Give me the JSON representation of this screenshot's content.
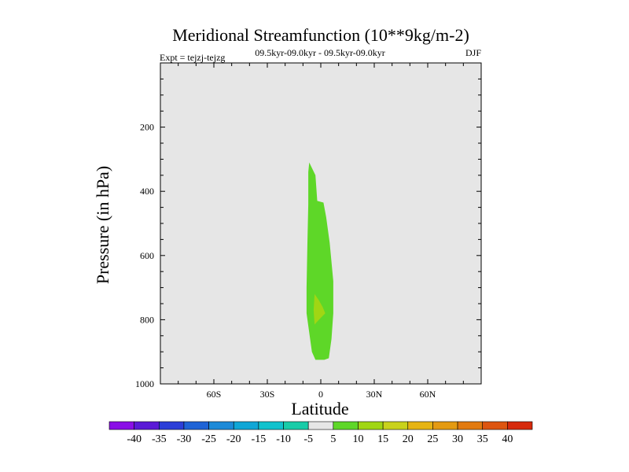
{
  "chart_data": {
    "type": "contour",
    "title": "Meridional Streamfunction (10**9kg/m-2)",
    "subtitle_left": "Expt = tejzj-tejzg",
    "subtitle_center": "09.5kyr-09.0kyr - 09.5kyr-09.0kyr",
    "subtitle_right": "DJF",
    "xlabel": "Latitude",
    "ylabel": "Pressure (in hPa)",
    "xlim": [
      -90,
      90
    ],
    "ylim": [
      1000,
      0
    ],
    "x_ticks": [
      {
        "value": -60,
        "label": "60S"
      },
      {
        "value": -30,
        "label": "30S"
      },
      {
        "value": 0,
        "label": "0"
      },
      {
        "value": 30,
        "label": "30N"
      },
      {
        "value": 60,
        "label": "60N"
      }
    ],
    "y_ticks": [
      {
        "value": 200,
        "label": "200"
      },
      {
        "value": 400,
        "label": "400"
      },
      {
        "value": 600,
        "label": "600"
      },
      {
        "value": 800,
        "label": "800"
      },
      {
        "value": 1000,
        "label": "1000"
      }
    ],
    "background_level": "-5 to 5",
    "regions": [
      {
        "level": "5 to 10",
        "color": "#5ed728",
        "outline": [
          [
            -6.5,
            310
          ],
          [
            -3,
            350
          ],
          [
            -2,
            430
          ],
          [
            1.5,
            435
          ],
          [
            3,
            480
          ],
          [
            5,
            560
          ],
          [
            7,
            680
          ],
          [
            7,
            780
          ],
          [
            6,
            860
          ],
          [
            4.5,
            920
          ],
          [
            2,
            925
          ],
          [
            -3,
            925
          ],
          [
            -5,
            900
          ],
          [
            -6.5,
            840
          ],
          [
            -8,
            780
          ],
          [
            -8,
            700
          ],
          [
            -7.5,
            560
          ],
          [
            -7,
            440
          ],
          [
            -7,
            340
          ]
        ]
      },
      {
        "level": "10 to 15",
        "color": "#a0d614",
        "outline": [
          [
            -3.5,
            720
          ],
          [
            -1,
            740
          ],
          [
            1,
            760
          ],
          [
            2.5,
            780
          ],
          [
            -1,
            800
          ],
          [
            -3.5,
            815
          ],
          [
            -4,
            770
          ]
        ]
      }
    ],
    "colorbar": {
      "labels": [
        "-40",
        "-35",
        "-30",
        "-25",
        "-20",
        "-15",
        "-10",
        "-5",
        "5",
        "10",
        "15",
        "20",
        "25",
        "30",
        "35",
        "40"
      ],
      "colors": [
        "#8a0fe6",
        "#5a1ad6",
        "#2c3ed8",
        "#1f63d6",
        "#1d8ad8",
        "#10a6d6",
        "#12c2cd",
        "#19cca8",
        "#e6e6e6",
        "#5ed728",
        "#a0d614",
        "#c9d21c",
        "#e6b414",
        "#e49a12",
        "#e27a10",
        "#dd5510",
        "#d62a0c"
      ]
    }
  }
}
